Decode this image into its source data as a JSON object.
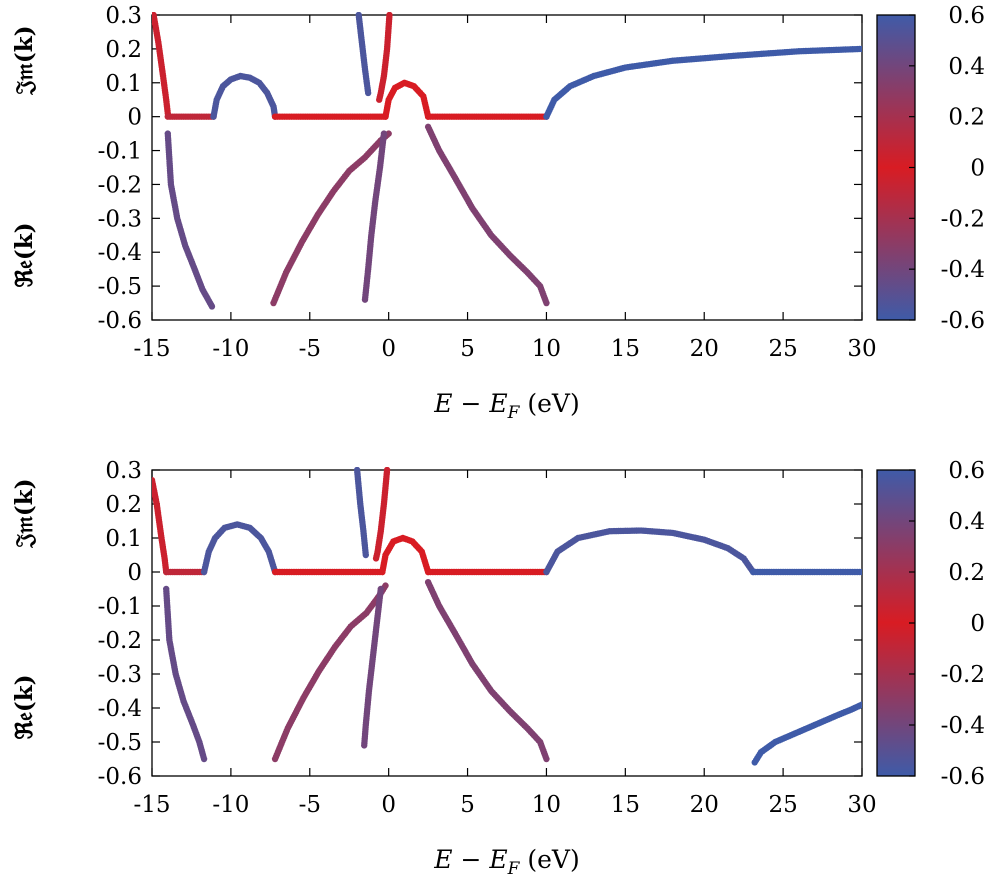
{
  "chart_data": [
    {
      "type": "scatter",
      "xlabel": "E − E_F (eV)",
      "xlabel_parts": {
        "e": "E",
        "minus": " − ",
        "ef": "E",
        "ef_sub": "F",
        "unit": " (eV)"
      },
      "ylabel_top": "𝔍𝔪(k)",
      "ylabel_bottom": "ℜ𝔢(k)",
      "xlim": [
        -15,
        30
      ],
      "ylim": [
        -0.6,
        0.3
      ],
      "x_ticks": [
        "-15",
        "-10",
        "-5",
        "0",
        "5",
        "10",
        "15",
        "20",
        "25",
        "30"
      ],
      "y_ticks": [
        "-0.6",
        "-0.5",
        "-0.4",
        "-0.3",
        "-0.2",
        "-0.1",
        "0",
        "0.1",
        "0.2",
        "0.3"
      ],
      "colorbar": {
        "range": [
          -0.6,
          0.6
        ],
        "ticks": [
          "0.6",
          "0.4",
          "0.2",
          "0",
          "-0.2",
          "-0.4",
          "-0.6"
        ],
        "colors": [
          "#3f5ba8",
          "#d81c23",
          "#3f5ba8"
        ]
      },
      "series": [
        {
          "points": [
            [
              -14.9,
              0.3
            ],
            [
              -14.6,
              0.22
            ],
            [
              -14.3,
              0.12
            ],
            [
              -14.1,
              0.05
            ],
            [
              -14.0,
              0.01
            ]
          ],
          "c": 0.05
        },
        {
          "points": [
            [
              -14.0,
              0.0
            ],
            [
              -13.0,
              0.0
            ],
            [
              -12.0,
              0.0
            ],
            [
              -11.1,
              0.0
            ]
          ],
          "c": 0.1
        },
        {
          "points": [
            [
              -11.1,
              0.0
            ],
            [
              -10.9,
              0.05
            ],
            [
              -10.5,
              0.09
            ],
            [
              -10.0,
              0.11
            ],
            [
              -9.4,
              0.12
            ],
            [
              -8.8,
              0.115
            ],
            [
              -8.2,
              0.1
            ],
            [
              -7.7,
              0.07
            ],
            [
              -7.3,
              0.03
            ],
            [
              -7.2,
              0.0
            ]
          ],
          "c": 0.55
        },
        {
          "points": [
            [
              -7.2,
              0.0
            ],
            [
              -6.0,
              0.0
            ],
            [
              -5.0,
              0.0
            ],
            [
              -4.0,
              0.0
            ],
            [
              -3.0,
              0.0
            ],
            [
              -2.0,
              0.0
            ],
            [
              -1.0,
              0.0
            ],
            [
              -0.2,
              0.0
            ]
          ],
          "c": 0.0
        },
        {
          "points": [
            [
              -0.2,
              0.0
            ],
            [
              0.0,
              0.05
            ],
            [
              0.4,
              0.085
            ],
            [
              1.0,
              0.1
            ],
            [
              1.6,
              0.09
            ],
            [
              2.2,
              0.06
            ],
            [
              2.5,
              0.0
            ]
          ],
          "c": 0.0
        },
        {
          "points": [
            [
              2.5,
              0.0
            ],
            [
              4.0,
              0.0
            ],
            [
              6.0,
              0.0
            ],
            [
              8.0,
              0.0
            ],
            [
              10.0,
              0.0
            ]
          ],
          "c": 0.0
        },
        {
          "points": [
            [
              10.0,
              0.0
            ],
            [
              10.5,
              0.05
            ],
            [
              11.5,
              0.09
            ],
            [
              13.0,
              0.12
            ],
            [
              15.0,
              0.145
            ],
            [
              18.0,
              0.165
            ],
            [
              22.0,
              0.18
            ],
            [
              26.0,
              0.193
            ],
            [
              30.0,
              0.2
            ]
          ],
          "c": 0.6
        },
        {
          "points": [
            [
              -1.9,
              0.3
            ],
            [
              -1.7,
              0.22
            ],
            [
              -1.5,
              0.14
            ],
            [
              -1.3,
              0.07
            ]
          ],
          "c": 0.55
        },
        {
          "points": [
            [
              0.05,
              0.3
            ],
            [
              -0.1,
              0.2
            ],
            [
              -0.3,
              0.12
            ],
            [
              -0.5,
              0.07
            ],
            [
              -0.6,
              0.05
            ]
          ],
          "c": 0.05
        },
        {
          "points": [
            [
              -14.0,
              -0.05
            ],
            [
              -13.8,
              -0.2
            ],
            [
              -13.4,
              -0.3
            ],
            [
              -12.9,
              -0.38
            ],
            [
              -12.3,
              -0.45
            ],
            [
              -11.8,
              -0.51
            ],
            [
              -11.2,
              -0.56
            ]
          ],
          "c": 0.45
        },
        {
          "points": [
            [
              -7.3,
              -0.55
            ],
            [
              -6.5,
              -0.46
            ],
            [
              -5.5,
              -0.37
            ],
            [
              -4.5,
              -0.29
            ],
            [
              -3.5,
              -0.22
            ],
            [
              -2.5,
              -0.16
            ],
            [
              -1.5,
              -0.12
            ],
            [
              -0.5,
              -0.07
            ],
            [
              0.0,
              -0.05
            ]
          ],
          "c": 0.3
        },
        {
          "points": [
            [
              -0.3,
              -0.05
            ],
            [
              -0.55,
              -0.15
            ],
            [
              -0.85,
              -0.25
            ],
            [
              -1.1,
              -0.35
            ],
            [
              -1.3,
              -0.45
            ],
            [
              -1.5,
              -0.54
            ]
          ],
          "c": 0.4
        },
        {
          "points": [
            [
              2.5,
              -0.03
            ],
            [
              3.2,
              -0.1
            ],
            [
              4.2,
              -0.18
            ],
            [
              5.3,
              -0.27
            ],
            [
              6.5,
              -0.35
            ],
            [
              7.7,
              -0.41
            ],
            [
              8.8,
              -0.46
            ],
            [
              9.6,
              -0.5
            ],
            [
              10.0,
              -0.55
            ]
          ],
          "c": 0.35
        }
      ]
    },
    {
      "type": "scatter",
      "xlabel": "E − E_F (eV)",
      "xlabel_parts": {
        "e": "E",
        "minus": " − ",
        "ef": "E",
        "ef_sub": "F",
        "unit": " (eV)"
      },
      "ylabel_top": "𝔍𝔪(k)",
      "ylabel_bottom": "ℜ𝔢(k)",
      "xlim": [
        -15,
        30
      ],
      "ylim": [
        -0.6,
        0.3
      ],
      "x_ticks": [
        "-15",
        "-10",
        "-5",
        "0",
        "5",
        "10",
        "15",
        "20",
        "25",
        "30"
      ],
      "y_ticks": [
        "-0.6",
        "-0.5",
        "-0.4",
        "-0.3",
        "-0.2",
        "-0.1",
        "0",
        "0.1",
        "0.2",
        "0.3"
      ],
      "colorbar": {
        "range": [
          -0.6,
          0.6
        ],
        "ticks": [
          "0.6",
          "0.4",
          "0.2",
          "0",
          "-0.2",
          "-0.4",
          "-0.6"
        ],
        "colors": [
          "#3f5ba8",
          "#d81c23",
          "#3f5ba8"
        ]
      },
      "series": [
        {
          "points": [
            [
              -15.0,
              0.27
            ],
            [
              -14.7,
              0.2
            ],
            [
              -14.4,
              0.1
            ],
            [
              -14.2,
              0.04
            ],
            [
              -14.1,
              0.0
            ]
          ],
          "c": 0.05
        },
        {
          "points": [
            [
              -14.1,
              0.0
            ],
            [
              -13.0,
              0.0
            ],
            [
              -11.7,
              0.0
            ]
          ],
          "c": 0.1
        },
        {
          "points": [
            [
              -11.7,
              0.0
            ],
            [
              -11.4,
              0.06
            ],
            [
              -11.0,
              0.1
            ],
            [
              -10.4,
              0.13
            ],
            [
              -9.6,
              0.14
            ],
            [
              -8.8,
              0.13
            ],
            [
              -8.1,
              0.1
            ],
            [
              -7.6,
              0.06
            ],
            [
              -7.2,
              0.0
            ]
          ],
          "c": 0.55
        },
        {
          "points": [
            [
              -7.2,
              0.0
            ],
            [
              -6.0,
              0.0
            ],
            [
              -5.0,
              0.0
            ],
            [
              -4.0,
              0.0
            ],
            [
              -3.0,
              0.0
            ],
            [
              -2.0,
              0.0
            ],
            [
              -1.0,
              0.0
            ],
            [
              -0.4,
              0.0
            ]
          ],
          "c": 0.0
        },
        {
          "points": [
            [
              -0.4,
              0.0
            ],
            [
              -0.2,
              0.05
            ],
            [
              0.3,
              0.09
            ],
            [
              0.9,
              0.1
            ],
            [
              1.5,
              0.09
            ],
            [
              2.1,
              0.06
            ],
            [
              2.5,
              0.0
            ]
          ],
          "c": 0.0
        },
        {
          "points": [
            [
              2.5,
              0.0
            ],
            [
              4.0,
              0.0
            ],
            [
              6.0,
              0.0
            ],
            [
              8.0,
              0.0
            ],
            [
              10.0,
              0.0
            ]
          ],
          "c": 0.0
        },
        {
          "points": [
            [
              10.0,
              0.0
            ],
            [
              10.7,
              0.06
            ],
            [
              12.0,
              0.1
            ],
            [
              14.0,
              0.12
            ],
            [
              16.0,
              0.122
            ],
            [
              18.0,
              0.115
            ],
            [
              20.0,
              0.095
            ],
            [
              21.5,
              0.07
            ],
            [
              22.5,
              0.04
            ],
            [
              23.1,
              0.0
            ]
          ],
          "c": 0.55
        },
        {
          "points": [
            [
              23.1,
              0.0
            ],
            [
              25.0,
              0.0
            ],
            [
              27.0,
              0.0
            ],
            [
              30.0,
              0.0
            ]
          ],
          "c": 0.6
        },
        {
          "points": [
            [
              -2.0,
              0.3
            ],
            [
              -1.8,
              0.2
            ],
            [
              -1.6,
              0.12
            ],
            [
              -1.45,
              0.05
            ]
          ],
          "c": 0.55
        },
        {
          "points": [
            [
              -0.1,
              0.3
            ],
            [
              -0.3,
              0.2
            ],
            [
              -0.5,
              0.12
            ],
            [
              -0.7,
              0.06
            ],
            [
              -0.8,
              0.04
            ]
          ],
          "c": 0.05
        },
        {
          "points": [
            [
              -14.1,
              -0.05
            ],
            [
              -13.9,
              -0.2
            ],
            [
              -13.5,
              -0.3
            ],
            [
              -13.0,
              -0.38
            ],
            [
              -12.4,
              -0.45
            ],
            [
              -12.0,
              -0.5
            ],
            [
              -11.7,
              -0.55
            ]
          ],
          "c": 0.45
        },
        {
          "points": [
            [
              -7.2,
              -0.55
            ],
            [
              -6.4,
              -0.46
            ],
            [
              -5.4,
              -0.37
            ],
            [
              -4.4,
              -0.29
            ],
            [
              -3.4,
              -0.22
            ],
            [
              -2.4,
              -0.16
            ],
            [
              -1.4,
              -0.12
            ],
            [
              -0.6,
              -0.07
            ],
            [
              -0.2,
              -0.04
            ]
          ],
          "c": 0.3
        },
        {
          "points": [
            [
              -0.5,
              -0.05
            ],
            [
              -0.75,
              -0.15
            ],
            [
              -1.0,
              -0.25
            ],
            [
              -1.25,
              -0.35
            ],
            [
              -1.45,
              -0.45
            ],
            [
              -1.55,
              -0.51
            ]
          ],
          "c": 0.4
        },
        {
          "points": [
            [
              2.5,
              -0.03
            ],
            [
              3.2,
              -0.1
            ],
            [
              4.2,
              -0.18
            ],
            [
              5.3,
              -0.27
            ],
            [
              6.5,
              -0.35
            ],
            [
              7.7,
              -0.41
            ],
            [
              8.8,
              -0.46
            ],
            [
              9.6,
              -0.5
            ],
            [
              10.0,
              -0.55
            ]
          ],
          "c": 0.35
        },
        {
          "points": [
            [
              23.2,
              -0.56
            ],
            [
              23.6,
              -0.53
            ],
            [
              24.5,
              -0.5
            ],
            [
              25.5,
              -0.48
            ],
            [
              26.5,
              -0.46
            ],
            [
              27.5,
              -0.44
            ],
            [
              28.5,
              -0.42
            ],
            [
              29.3,
              -0.405
            ],
            [
              30.0,
              -0.39
            ]
          ],
          "c": 0.6
        }
      ]
    }
  ]
}
